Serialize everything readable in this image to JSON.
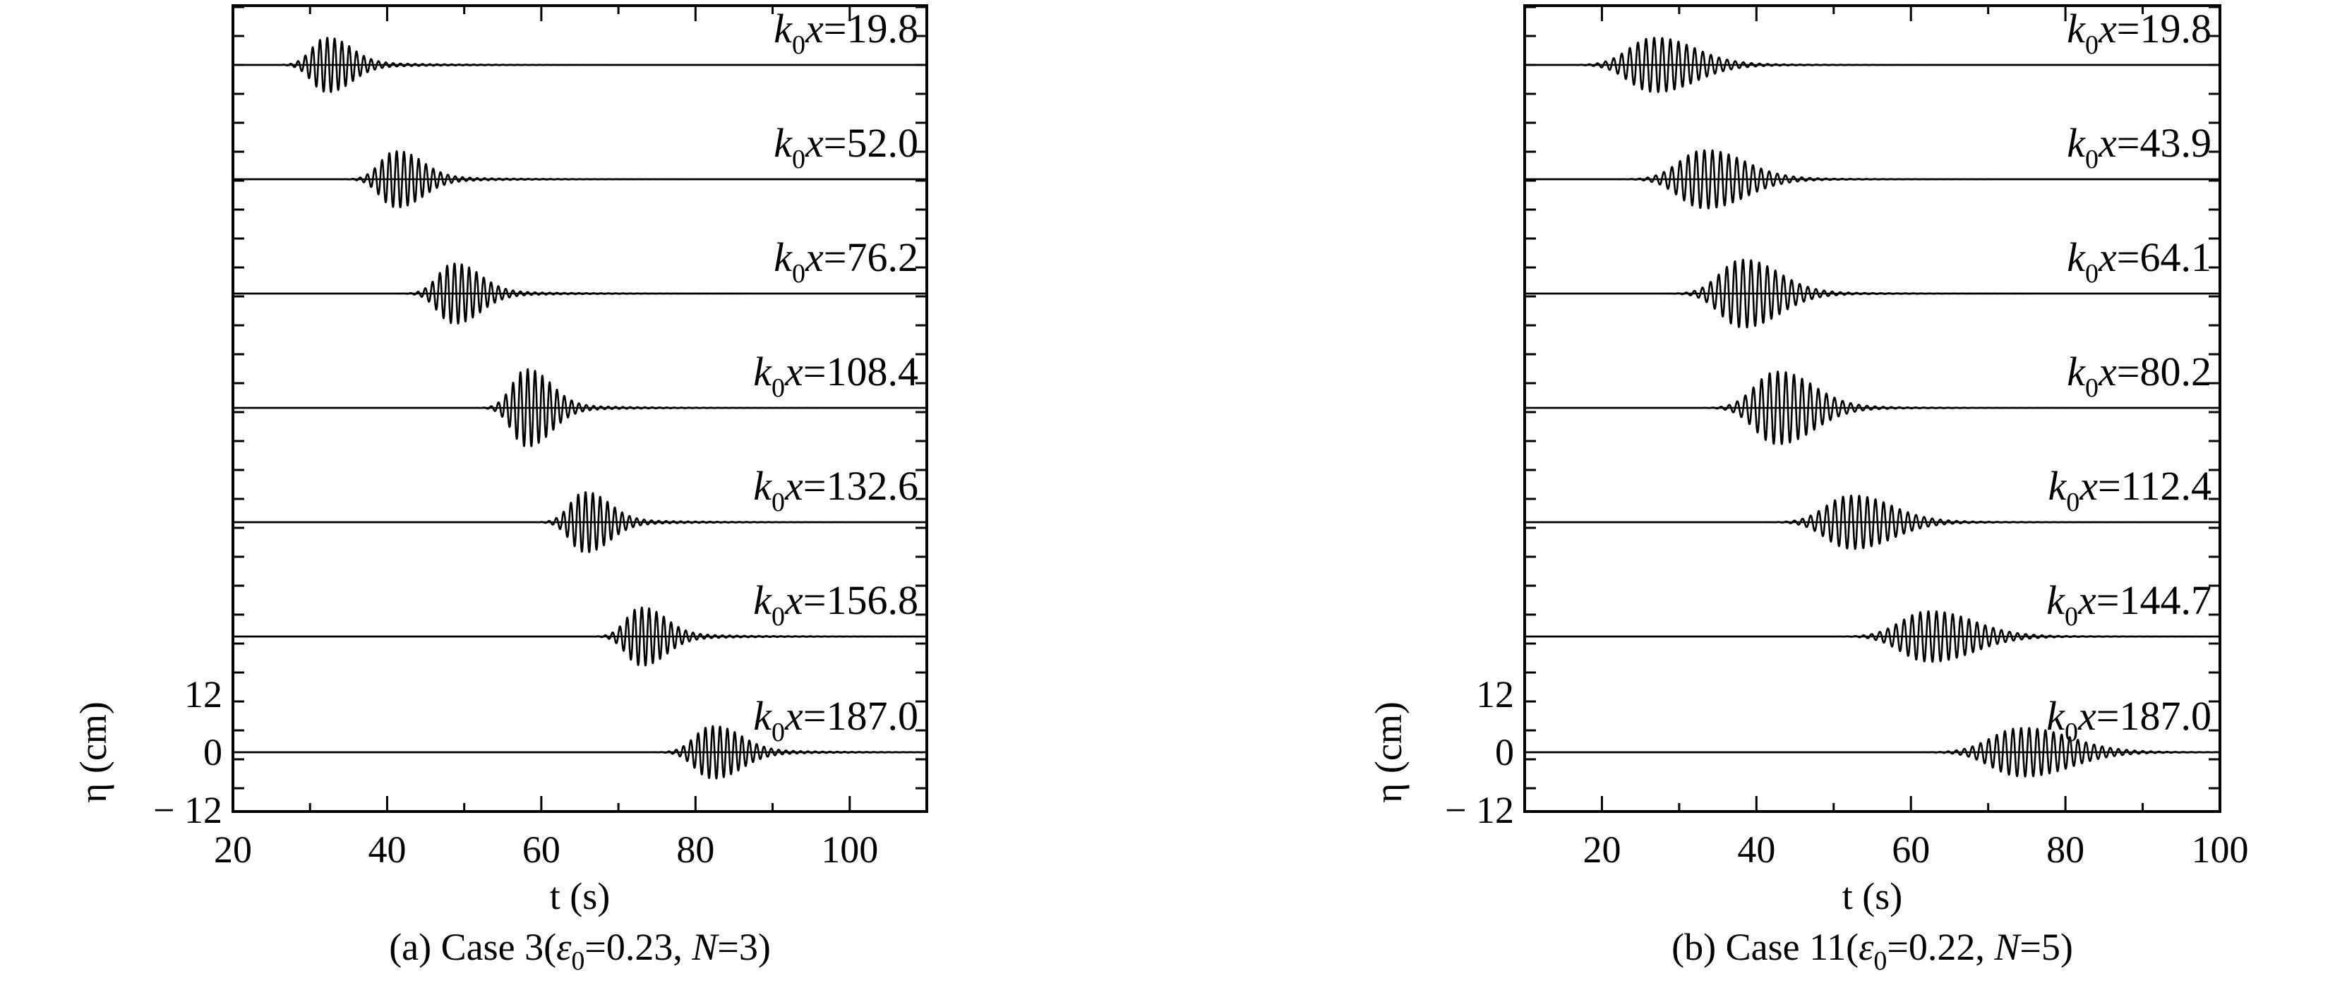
{
  "chart_data": [
    {
      "type": "line",
      "panel": "a",
      "caption": {
        "prefix": "(a) Case 3(",
        "epsilon_value": "=0.23, ",
        "n_value": "=3)"
      },
      "xlabel": "t (s)",
      "ylabel": "η (cm)",
      "xlim": [
        20,
        110
      ],
      "xticks": [
        20,
        40,
        60,
        80,
        100
      ],
      "xtick_labels": [
        "20",
        "40",
        "60",
        "80",
        "100"
      ],
      "yticks": [
        -12,
        0,
        12
      ],
      "ytick_labels": [
        "− 12",
        "0",
        "12"
      ],
      "ylim_per_trace": [
        -12,
        12
      ],
      "traces": [
        {
          "label_value": "=19.8",
          "k0x": 19.8,
          "peak_t": 32.0,
          "width_s": 3.0,
          "amplitude_cm": 5.6,
          "period_s": 0.95
        },
        {
          "label_value": "=52.0",
          "k0x": 52.0,
          "peak_t": 41.0,
          "width_s": 3.2,
          "amplitude_cm": 5.8,
          "period_s": 0.95
        },
        {
          "label_value": "=76.2",
          "k0x": 76.2,
          "peak_t": 48.5,
          "width_s": 3.2,
          "amplitude_cm": 6.2,
          "period_s": 0.95
        },
        {
          "label_value": "=108.4",
          "k0x": 108.4,
          "peak_t": 58.0,
          "width_s": 3.0,
          "amplitude_cm": 8.0,
          "period_s": 0.95
        },
        {
          "label_value": "=132.6",
          "k0x": 132.6,
          "peak_t": 65.5,
          "width_s": 3.0,
          "amplitude_cm": 6.2,
          "period_s": 0.95
        },
        {
          "label_value": "=156.8",
          "k0x": 156.8,
          "peak_t": 72.8,
          "width_s": 3.0,
          "amplitude_cm": 6.0,
          "period_s": 0.95
        },
        {
          "label_value": "=187.0",
          "k0x": 187.0,
          "peak_t": 82.0,
          "width_s": 3.5,
          "amplitude_cm": 5.4,
          "period_s": 0.95
        }
      ]
    },
    {
      "type": "line",
      "panel": "b",
      "caption": {
        "prefix": "(b) Case 11(",
        "epsilon_value": "=0.22, ",
        "n_value": "=5)"
      },
      "xlabel": "t (s)",
      "ylabel": "η (cm)",
      "xlim": [
        10,
        100
      ],
      "xticks": [
        20,
        40,
        60,
        80,
        100
      ],
      "xtick_labels": [
        "20",
        "40",
        "60",
        "80",
        "100"
      ],
      "yticks": [
        -12,
        0,
        12
      ],
      "ytick_labels": [
        "− 12",
        "0",
        "12"
      ],
      "ylim_per_trace": [
        -12,
        12
      ],
      "traces": [
        {
          "label_value": "=19.8",
          "k0x": 19.8,
          "peak_t": 26.5,
          "width_s": 5.0,
          "amplitude_cm": 5.6,
          "period_s": 1.05
        },
        {
          "label_value": "=43.9",
          "k0x": 43.9,
          "peak_t": 33.0,
          "width_s": 5.0,
          "amplitude_cm": 6.0,
          "period_s": 1.05
        },
        {
          "label_value": "=64.1",
          "k0x": 64.1,
          "peak_t": 38.0,
          "width_s": 4.5,
          "amplitude_cm": 7.0,
          "period_s": 1.05
        },
        {
          "label_value": "=80.2",
          "k0x": 80.2,
          "peak_t": 42.5,
          "width_s": 4.5,
          "amplitude_cm": 7.5,
          "period_s": 1.05
        },
        {
          "label_value": "=112.4",
          "k0x": 112.4,
          "peak_t": 52.0,
          "width_s": 5.0,
          "amplitude_cm": 5.5,
          "period_s": 1.05
        },
        {
          "label_value": "=144.7",
          "k0x": 144.7,
          "peak_t": 62.0,
          "width_s": 5.5,
          "amplitude_cm": 5.2,
          "period_s": 1.05
        },
        {
          "label_value": "=187.0",
          "k0x": 187.0,
          "peak_t": 74.0,
          "width_s": 6.0,
          "amplitude_cm": 5.0,
          "period_s": 1.05
        }
      ]
    }
  ],
  "trace_label_prefix": {
    "k": "k",
    "sub": "0",
    "x": "x"
  },
  "caption_symbols": {
    "epsilon": "ε",
    "epsilon_sub": "0",
    "n": "N"
  }
}
